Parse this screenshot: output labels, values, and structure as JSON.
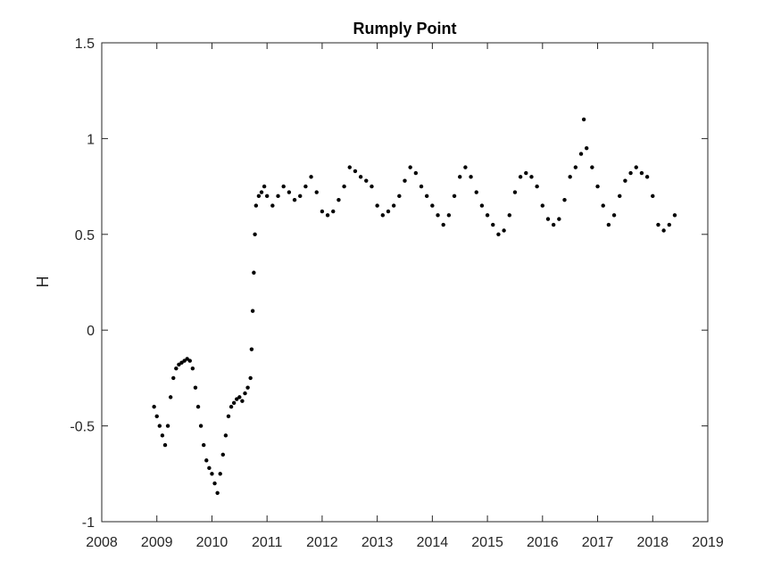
{
  "chart_data": {
    "type": "scatter",
    "title": "Rumply Point",
    "xlabel": "",
    "ylabel": "H",
    "xlim": [
      2008,
      2019
    ],
    "ylim": [
      -1,
      1.5
    ],
    "xticks": [
      "2008",
      "2009",
      "2010",
      "2011",
      "2012",
      "2013",
      "2014",
      "2015",
      "2016",
      "2017",
      "2018",
      "2019"
    ],
    "yticks": [
      "-1",
      "-0.5",
      "0",
      "0.5",
      "1",
      "1.5"
    ],
    "grid": false,
    "legend": "none",
    "colors": {
      "marker": "#000000",
      "axis": "#262626"
    },
    "series": [
      {
        "x": [
          2008.95,
          2009.0,
          2009.05,
          2009.1,
          2009.15,
          2009.2,
          2009.25,
          2009.3,
          2009.35,
          2009.4,
          2009.45,
          2009.5,
          2009.55,
          2009.6,
          2009.65,
          2009.7,
          2009.75,
          2009.8,
          2009.85,
          2009.9,
          2009.95,
          2010.0,
          2010.05,
          2010.1,
          2010.15,
          2010.2,
          2010.25,
          2010.3,
          2010.35,
          2010.4,
          2010.45,
          2010.5,
          2010.55,
          2010.6,
          2010.65,
          2010.7,
          2010.72,
          2010.74,
          2010.76,
          2010.78,
          2010.8,
          2010.85,
          2010.9,
          2010.95,
          2011.0,
          2011.1,
          2011.2,
          2011.3,
          2011.4,
          2011.5,
          2011.6,
          2011.7,
          2011.8,
          2011.9,
          2012.0,
          2012.1,
          2012.2,
          2012.3,
          2012.4,
          2012.5,
          2012.6,
          2012.7,
          2012.8,
          2012.9,
          2013.0,
          2013.1,
          2013.2,
          2013.3,
          2013.4,
          2013.5,
          2013.6,
          2013.7,
          2013.8,
          2013.9,
          2014.0,
          2014.1,
          2014.2,
          2014.3,
          2014.4,
          2014.5,
          2014.6,
          2014.7,
          2014.8,
          2014.9,
          2015.0,
          2015.1,
          2015.2,
          2015.3,
          2015.4,
          2015.5,
          2015.6,
          2015.7,
          2015.8,
          2015.9,
          2016.0,
          2016.1,
          2016.2,
          2016.3,
          2016.4,
          2016.5,
          2016.6,
          2016.7,
          2016.75,
          2016.8,
          2016.9,
          2017.0,
          2017.1,
          2017.2,
          2017.3,
          2017.4,
          2017.5,
          2017.6,
          2017.7,
          2017.8,
          2017.9,
          2018.0,
          2018.1,
          2018.2,
          2018.3,
          2018.4
        ],
        "y": [
          -0.4,
          -0.45,
          -0.5,
          -0.55,
          -0.6,
          -0.5,
          -0.35,
          -0.25,
          -0.2,
          -0.18,
          -0.17,
          -0.16,
          -0.15,
          -0.16,
          -0.2,
          -0.3,
          -0.4,
          -0.5,
          -0.6,
          -0.68,
          -0.72,
          -0.75,
          -0.8,
          -0.85,
          -0.75,
          -0.65,
          -0.55,
          -0.45,
          -0.4,
          -0.38,
          -0.36,
          -0.35,
          -0.37,
          -0.33,
          -0.3,
          -0.25,
          -0.1,
          0.1,
          0.3,
          0.5,
          0.65,
          0.7,
          0.72,
          0.75,
          0.7,
          0.65,
          0.7,
          0.75,
          0.72,
          0.68,
          0.7,
          0.75,
          0.8,
          0.72,
          0.62,
          0.6,
          0.62,
          0.68,
          0.75,
          0.85,
          0.83,
          0.8,
          0.78,
          0.75,
          0.65,
          0.6,
          0.62,
          0.65,
          0.7,
          0.78,
          0.85,
          0.82,
          0.75,
          0.7,
          0.65,
          0.6,
          0.55,
          0.6,
          0.7,
          0.8,
          0.85,
          0.8,
          0.72,
          0.65,
          0.6,
          0.55,
          0.5,
          0.52,
          0.6,
          0.72,
          0.8,
          0.82,
          0.8,
          0.75,
          0.65,
          0.58,
          0.55,
          0.58,
          0.68,
          0.8,
          0.85,
          0.92,
          1.1,
          0.95,
          0.85,
          0.75,
          0.65,
          0.55,
          0.6,
          0.7,
          0.78,
          0.82,
          0.85,
          0.82,
          0.8,
          0.7,
          0.55,
          0.52,
          0.55,
          0.6
        ]
      }
    ]
  }
}
